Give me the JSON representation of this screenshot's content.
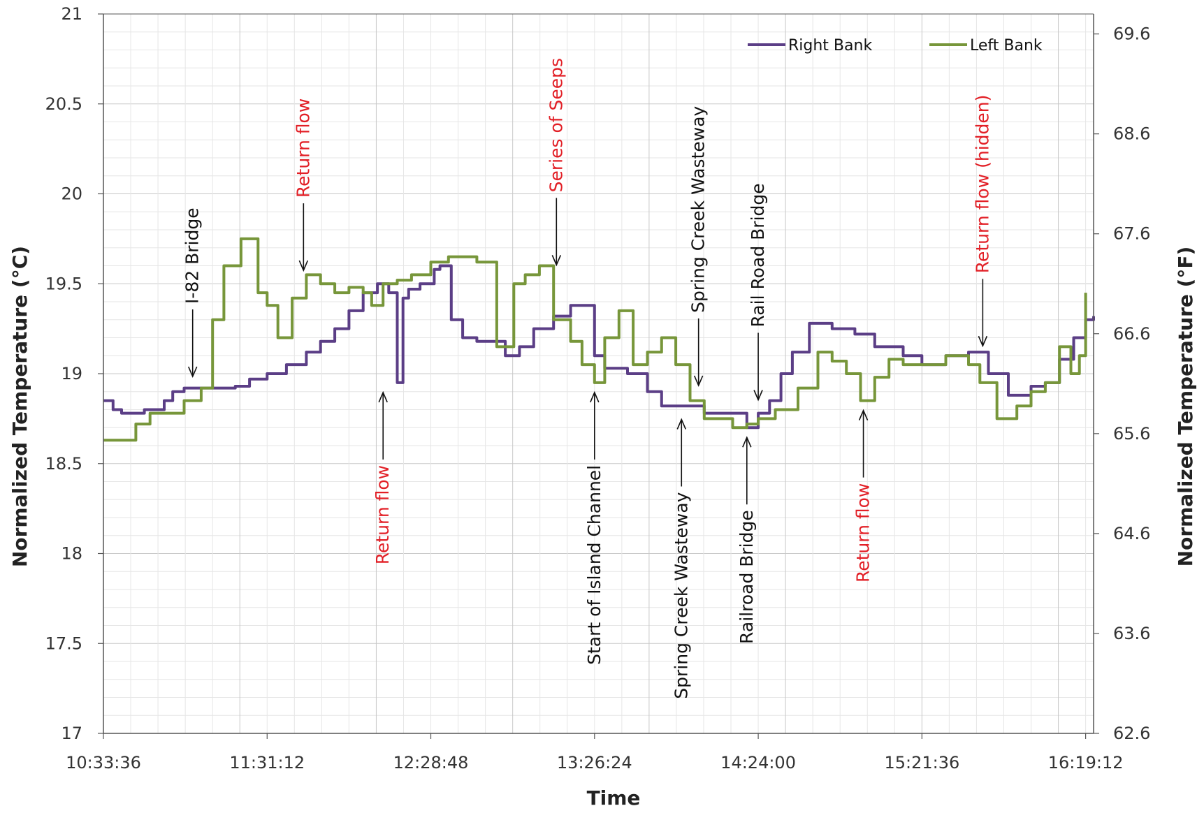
{
  "chart_data": {
    "type": "line",
    "xlabel": "Time",
    "ylabel": "Normalized Temperature (°C)",
    "ylabel_right": "Normalized Temperature (°F)",
    "xlim": [
      "10:33:36",
      "16:22:00"
    ],
    "ylim": [
      17,
      21
    ],
    "ylim_right": [
      62.6,
      69.8
    ],
    "x_ticks": [
      "10:33:36",
      "11:31:12",
      "12:28:48",
      "13:26:24",
      "14:24:00",
      "15:21:36",
      "16:19:12"
    ],
    "y_ticks": [
      "17",
      "17.5",
      "18",
      "18.5",
      "19",
      "19.5",
      "20",
      "20.5",
      "21"
    ],
    "y_ticks_right": [
      "62.6",
      "63.6",
      "64.6",
      "65.6",
      "66.6",
      "67.6",
      "68.6",
      "69.6"
    ],
    "grid": true,
    "legend_position": "top-right",
    "series": [
      {
        "name": "Right Bank",
        "color": "#5b3e86",
        "x": [
          "10:33:36",
          "10:37:00",
          "10:40:00",
          "10:45:00",
          "10:48:00",
          "10:55:00",
          "10:58:00",
          "11:02:00",
          "11:05:00",
          "11:12:00",
          "11:20:00",
          "11:25:00",
          "11:31:12",
          "11:38:00",
          "11:45:00",
          "11:50:00",
          "11:55:00",
          "12:00:00",
          "12:05:00",
          "12:10:00",
          "12:14:00",
          "12:17:00",
          "12:19:00",
          "12:21:00",
          "12:25:00",
          "12:30:00",
          "12:32:00",
          "12:36:00",
          "12:40:00",
          "12:45:00",
          "12:55:00",
          "13:00:00",
          "13:05:00",
          "13:12:00",
          "13:18:00",
          "13:26:24",
          "13:30:00",
          "13:38:00",
          "13:45:00",
          "13:50:00",
          "13:55:00",
          "14:05:00",
          "14:12:00",
          "14:20:00",
          "14:24:00",
          "14:28:00",
          "14:32:00",
          "14:36:00",
          "14:42:00",
          "14:50:00",
          "14:58:00",
          "15:05:00",
          "15:15:00",
          "15:21:36",
          "15:30:00",
          "15:38:00",
          "15:45:00",
          "15:52:00",
          "16:00:00",
          "16:05:00",
          "16:10:00",
          "16:15:00",
          "16:19:12",
          "16:22:00"
        ],
        "values": [
          18.85,
          18.8,
          18.78,
          18.78,
          18.8,
          18.85,
          18.9,
          18.92,
          18.92,
          18.92,
          18.93,
          18.97,
          19.0,
          19.05,
          19.12,
          19.18,
          19.25,
          19.35,
          19.45,
          19.5,
          19.45,
          18.95,
          19.42,
          19.47,
          19.5,
          19.58,
          19.6,
          19.3,
          19.2,
          19.18,
          19.1,
          19.15,
          19.25,
          19.32,
          19.38,
          19.1,
          19.03,
          19.0,
          18.9,
          18.82,
          18.82,
          18.78,
          18.78,
          18.7,
          18.78,
          18.85,
          19.0,
          19.12,
          19.28,
          19.25,
          19.22,
          19.15,
          19.1,
          19.05,
          19.1,
          19.12,
          19.0,
          18.88,
          18.93,
          18.95,
          19.08,
          19.2,
          19.3,
          19.32
        ]
      },
      {
        "name": "Left Bank",
        "color": "#77963a",
        "x": [
          "10:33:36",
          "10:40:00",
          "10:45:00",
          "10:50:00",
          "10:55:00",
          "11:02:00",
          "11:08:00",
          "11:12:00",
          "11:16:00",
          "11:22:00",
          "11:28:00",
          "11:31:12",
          "11:35:00",
          "11:40:00",
          "11:45:00",
          "11:50:00",
          "11:55:00",
          "12:00:00",
          "12:05:00",
          "12:08:00",
          "12:12:00",
          "12:17:00",
          "12:22:00",
          "12:28:48",
          "12:35:00",
          "12:45:00",
          "12:52:00",
          "12:58:00",
          "13:02:00",
          "13:07:00",
          "13:12:00",
          "13:18:00",
          "13:22:00",
          "13:26:24",
          "13:30:00",
          "13:35:00",
          "13:40:00",
          "13:45:00",
          "13:50:00",
          "13:55:00",
          "14:00:00",
          "14:05:00",
          "14:10:00",
          "14:15:00",
          "14:20:00",
          "14:24:00",
          "14:30:00",
          "14:38:00",
          "14:45:00",
          "14:50:00",
          "14:55:00",
          "15:00:00",
          "15:05:00",
          "15:10:00",
          "15:15:00",
          "15:21:36",
          "15:30:00",
          "15:38:00",
          "15:42:00",
          "15:48:00",
          "15:55:00",
          "16:00:00",
          "16:05:00",
          "16:10:00",
          "16:14:00",
          "16:17:00",
          "16:19:12"
        ],
        "values": [
          18.63,
          18.63,
          18.72,
          18.78,
          18.78,
          18.85,
          18.92,
          19.3,
          19.6,
          19.75,
          19.45,
          19.38,
          19.2,
          19.42,
          19.55,
          19.5,
          19.45,
          19.48,
          19.45,
          19.38,
          19.5,
          19.52,
          19.55,
          19.62,
          19.65,
          19.62,
          19.15,
          19.5,
          19.55,
          19.6,
          19.3,
          19.18,
          19.05,
          18.95,
          19.2,
          19.35,
          19.05,
          19.12,
          19.2,
          19.05,
          18.85,
          18.75,
          18.75,
          18.7,
          18.72,
          18.75,
          18.8,
          18.92,
          19.12,
          19.07,
          19.0,
          18.85,
          18.98,
          19.08,
          19.05,
          19.05,
          19.1,
          19.05,
          18.95,
          18.75,
          18.82,
          18.9,
          18.95,
          19.15,
          19.0,
          19.1,
          19.45
        ]
      }
    ],
    "annotations": [
      {
        "text": "I-82 Bridge",
        "color": "#111111",
        "x": "11:05:00",
        "y": 18.93,
        "anchor": "above"
      },
      {
        "text": "Return flow",
        "color": "#e21f26",
        "x": "11:44:00",
        "y": 19.52,
        "anchor": "above"
      },
      {
        "text": "Return flow",
        "color": "#e21f26",
        "x": "12:12:00",
        "y": 18.95,
        "anchor": "below"
      },
      {
        "text": "Series of Seeps",
        "color": "#e21f26",
        "x": "13:13:00",
        "y": 19.55,
        "anchor": "above"
      },
      {
        "text": "Start of Island Channel",
        "color": "#111111",
        "x": "13:26:24",
        "y": 18.95,
        "anchor": "below"
      },
      {
        "text": "Spring Creek Wasteway",
        "color": "#111111",
        "x": "14:03:00",
        "y": 18.88,
        "anchor": "above"
      },
      {
        "text": "Spring Creek Wasteway",
        "color": "#111111",
        "x": "13:57:00",
        "y": 18.8,
        "anchor": "below"
      },
      {
        "text": "Rail Road Bridge",
        "color": "#111111",
        "x": "14:24:00",
        "y": 18.8,
        "anchor": "above"
      },
      {
        "text": "Railroad Bridge",
        "color": "#111111",
        "x": "14:20:00",
        "y": 18.7,
        "anchor": "below"
      },
      {
        "text": "Return flow",
        "color": "#e21f26",
        "x": "15:01:00",
        "y": 18.85,
        "anchor": "below"
      },
      {
        "text": "Return flow (hidden)",
        "color": "#e21f26",
        "x": "15:43:00",
        "y": 19.1,
        "anchor": "above"
      }
    ]
  }
}
